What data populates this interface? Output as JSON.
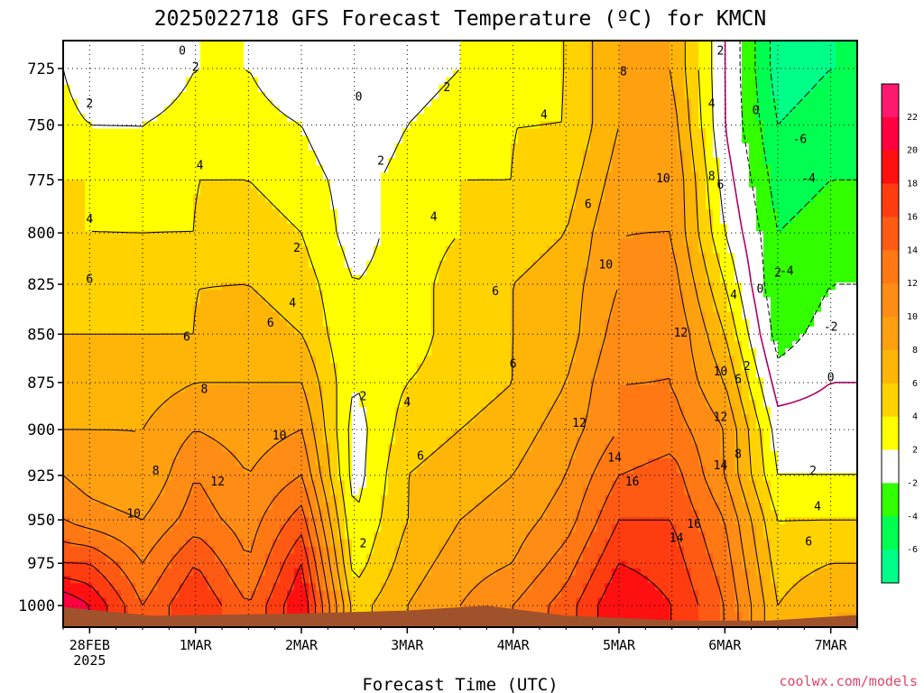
{
  "chart_data": {
    "type": "heatmap",
    "title": "2025022718 GFS Forecast Temperature (ºC) for KMCN",
    "xlabel": "Forecast Time (UTC)",
    "ylabel": "",
    "credit": "coolwx.com/models",
    "y_axis": {
      "unit": "hPa",
      "ticks": [
        725,
        750,
        775,
        800,
        825,
        850,
        875,
        900,
        925,
        950,
        975,
        1000
      ],
      "range": [
        1013,
        713
      ],
      "grid": true
    },
    "x_axis": {
      "ticks": [
        {
          "label": "28FEB",
          "sublabel": "2025",
          "date": "2025-02-28 00Z"
        },
        {
          "label": "1MAR",
          "date": "2025-03-01 00Z"
        },
        {
          "label": "2MAR",
          "date": "2025-03-02 00Z"
        },
        {
          "label": "3MAR",
          "date": "2025-03-03 00Z"
        },
        {
          "label": "4MAR",
          "date": "2025-03-04 00Z"
        },
        {
          "label": "5MAR",
          "date": "2025-03-05 00Z"
        },
        {
          "label": "6MAR",
          "date": "2025-03-06 00Z"
        },
        {
          "label": "7MAR",
          "date": "2025-03-07 00Z"
        }
      ],
      "range": [
        "2025-02-27 18Z",
        "2025-03-07 06Z"
      ],
      "grid": true
    },
    "colorbar": {
      "placement": "right",
      "labels": [
        "22",
        "20",
        "18",
        "16",
        "14",
        "12",
        "10",
        "8",
        "6",
        "4",
        "2",
        "-2",
        "-4",
        "-6"
      ],
      "bands": [
        {
          "min": 22,
          "color": "#ff1a70"
        },
        {
          "min": 20,
          "color": "#ff0040"
        },
        {
          "min": 18,
          "color": "#ff1010"
        },
        {
          "min": 16,
          "color": "#ff3c10"
        },
        {
          "min": 14,
          "color": "#ff5a14"
        },
        {
          "min": 12,
          "color": "#ff7814"
        },
        {
          "min": 10,
          "color": "#ff8c14"
        },
        {
          "min": 8,
          "color": "#ffa010"
        },
        {
          "min": 6,
          "color": "#ffb408"
        },
        {
          "min": 4,
          "color": "#ffd200"
        },
        {
          "min": 2,
          "color": "#ffff00"
        },
        {
          "min": -2,
          "color": "#ffffff"
        },
        {
          "min": -4,
          "color": "#32ff00"
        },
        {
          "min": -6,
          "color": "#00ff50"
        },
        {
          "min": -99,
          "color": "#00ff88"
        }
      ]
    },
    "ground_color": "#a0522d",
    "series": [
      {
        "time": "2025-02-27 18Z",
        "temps": {
          "1000": 22,
          "975": 16,
          "950": 12,
          "925": 10,
          "900": 8,
          "875": 7,
          "850": 6,
          "825": 5,
          "800": 4,
          "775": 4,
          "750": 3,
          "725": 2
        }
      },
      {
        "time": "2025-02-28 00Z",
        "temps": {
          "1000": 20,
          "975": 16,
          "950": 11,
          "925": 9,
          "900": 8,
          "875": 7,
          "850": 6,
          "825": 5,
          "800": 4,
          "775": 4,
          "750": 2,
          "725": 0
        }
      },
      {
        "time": "2025-02-28 12Z",
        "temps": {
          "1000": 14,
          "975": 12,
          "950": 10,
          "925": 8,
          "900": 8,
          "875": 7,
          "850": 6,
          "825": 5,
          "800": 4,
          "775": 3,
          "750": 2,
          "725": 0
        }
      },
      {
        "time": "2025-03-01 00Z",
        "temps": {
          "1000": 18,
          "975": 16,
          "950": 13,
          "925": 12,
          "900": 10,
          "875": 8,
          "850": 6,
          "825": 6,
          "800": 4,
          "775": 4,
          "750": 3,
          "725": 2
        }
      },
      {
        "time": "2025-03-01 12Z",
        "temps": {
          "1000": 14,
          "975": 12,
          "950": 11,
          "925": 10,
          "900": 9,
          "875": 8,
          "850": 7,
          "825": 6,
          "800": 5,
          "775": 4,
          "750": 3,
          "725": 2
        }
      },
      {
        "time": "2025-03-02 00Z",
        "temps": {
          "1000": 20,
          "975": 18,
          "950": 15,
          "925": 12,
          "900": 10,
          "875": 8,
          "850": 6,
          "825": 5,
          "800": 4,
          "775": 3,
          "750": 2,
          "725": 0
        }
      },
      {
        "time": "2025-03-02 12Z",
        "temps": {
          "1000": 5,
          "975": 3,
          "950": 2,
          "925": 1,
          "900": 1,
          "875": 2,
          "850": 2,
          "825": 2,
          "800": 1,
          "775": 1,
          "750": 0,
          "725": 0
        }
      },
      {
        "time": "2025-03-03 00Z",
        "temps": {
          "1000": 8,
          "975": 7,
          "950": 6,
          "925": 6,
          "900": 5,
          "875": 4,
          "850": 3,
          "825": 3,
          "800": 3,
          "775": 3,
          "750": 2,
          "725": 1
        }
      },
      {
        "time": "2025-03-03 12Z",
        "temps": {
          "1000": 10,
          "975": 9,
          "950": 8,
          "925": 7,
          "900": 6,
          "875": 5,
          "850": 5,
          "825": 5,
          "800": 4,
          "775": 4,
          "750": 3,
          "725": 2
        }
      },
      {
        "time": "2025-03-04 00Z",
        "temps": {
          "1000": 12,
          "975": 10,
          "950": 9,
          "925": 8,
          "900": 7,
          "875": 6,
          "850": 6,
          "825": 6,
          "800": 5,
          "775": 4,
          "750": 4,
          "725": 3
        }
      },
      {
        "time": "2025-03-04 12Z",
        "temps": {
          "1000": 15,
          "975": 13,
          "950": 11,
          "925": 10,
          "900": 9,
          "875": 8,
          "850": 7,
          "825": 7,
          "800": 6,
          "775": 5,
          "750": 4,
          "725": 4
        }
      },
      {
        "time": "2025-03-05 00Z",
        "temps": {
          "1000": 20,
          "975": 18,
          "950": 16,
          "925": 14,
          "900": 12,
          "875": 12,
          "850": 11,
          "825": 10,
          "800": 10,
          "775": 9,
          "750": 8,
          "725": 8
        }
      },
      {
        "time": "2025-03-05 12Z",
        "temps": {
          "1000": 18,
          "975": 17,
          "950": 16,
          "925": 15,
          "900": 13,
          "875": 12,
          "850": 12,
          "825": 11,
          "800": 10,
          "775": 10,
          "750": 9,
          "725": 8
        }
      },
      {
        "time": "2025-03-06 00Z",
        "temps": {
          "1000": 14,
          "975": 13,
          "950": 12,
          "925": 10,
          "900": 10,
          "875": 8,
          "850": 6,
          "825": 4,
          "800": 2,
          "775": 1,
          "750": 0,
          "725": 0
        }
      },
      {
        "time": "2025-03-06 12Z",
        "temps": {
          "1000": 6,
          "975": 5,
          "950": 4,
          "925": 2,
          "900": 1,
          "875": -1,
          "850": -3,
          "825": -4,
          "800": -4,
          "775": -5,
          "750": -6,
          "725": -7
        }
      },
      {
        "time": "2025-03-07 00Z",
        "temps": {
          "1000": 8,
          "975": 6,
          "950": 4,
          "925": 2,
          "900": 1,
          "875": 0,
          "850": -1,
          "825": -2,
          "800": -3,
          "775": -4,
          "750": -5,
          "725": -6
        }
      }
    ],
    "contour_labels": [
      {
        "text": "0",
        "time": "2025-02-28 21Z",
        "level": 717
      },
      {
        "text": "2",
        "time": "2025-03-01 00Z",
        "level": 724
      },
      {
        "text": "2",
        "time": "2025-02-28 00Z",
        "level": 740
      },
      {
        "text": "0",
        "time": "2025-03-02 13Z",
        "level": 737
      },
      {
        "text": "2",
        "time": "2025-03-03 09Z",
        "level": 733
      },
      {
        "text": "8",
        "time": "2025-03-05 01Z",
        "level": 726
      },
      {
        "text": "2",
        "time": "2025-03-05 23Z",
        "level": 717
      },
      {
        "text": "4",
        "time": "2025-03-05 21Z",
        "level": 740
      },
      {
        "text": "0",
        "time": "2025-03-06 07Z",
        "level": 743
      },
      {
        "text": "4",
        "time": "2025-03-04 07Z",
        "level": 745
      },
      {
        "text": "4",
        "time": "2025-03-01 01Z",
        "level": 768
      },
      {
        "text": "2",
        "time": "2025-03-02 18Z",
        "level": 766
      },
      {
        "text": "-6",
        "time": "2025-03-06 17Z",
        "level": 756
      },
      {
        "text": "-4",
        "time": "2025-03-06 19Z",
        "level": 774
      },
      {
        "text": "10",
        "time": "2025-03-05 10Z",
        "level": 774
      },
      {
        "text": "8",
        "time": "2025-03-05 21Z",
        "level": 773
      },
      {
        "text": "6",
        "time": "2025-03-05 23Z",
        "level": 777
      },
      {
        "text": "6",
        "time": "2025-03-04 17Z",
        "level": 786
      },
      {
        "text": "4",
        "time": "2025-02-28 00Z",
        "level": 793
      },
      {
        "text": "4",
        "time": "2025-03-03 06Z",
        "level": 792
      },
      {
        "text": "2",
        "time": "2025-03-01 23Z",
        "level": 807
      },
      {
        "text": "10",
        "time": "2025-03-04 21Z",
        "level": 815
      },
      {
        "text": "2",
        "time": "2025-03-06 12Z",
        "level": 819
      },
      {
        "text": "-4",
        "time": "2025-03-06 14Z",
        "level": 818
      },
      {
        "text": "6",
        "time": "2025-02-28 00Z",
        "level": 822
      },
      {
        "text": "0",
        "time": "2025-03-06 08Z",
        "level": 827
      },
      {
        "text": "6",
        "time": "2025-03-03 20Z",
        "level": 828
      },
      {
        "text": "4",
        "time": "2025-03-06 02Z",
        "level": 830
      },
      {
        "text": "4",
        "time": "2025-03-01 22Z",
        "level": 834
      },
      {
        "text": "6",
        "time": "2025-03-01 17Z",
        "level": 844
      },
      {
        "text": "-2",
        "time": "2025-03-07 00Z",
        "level": 846
      },
      {
        "text": "6",
        "time": "2025-02-28 22Z",
        "level": 851
      },
      {
        "text": "12",
        "time": "2025-03-05 14Z",
        "level": 849
      },
      {
        "text": "6",
        "time": "2025-03-04 00Z",
        "level": 865
      },
      {
        "text": "2",
        "time": "2025-03-06 05Z",
        "level": 866
      },
      {
        "text": "10",
        "time": "2025-03-05 23Z",
        "level": 869
      },
      {
        "text": "8",
        "time": "2025-03-01 02Z",
        "level": 878
      },
      {
        "text": "6",
        "time": "2025-03-06 03Z",
        "level": 873
      },
      {
        "text": "0",
        "time": "2025-03-07 00Z",
        "level": 872
      },
      {
        "text": "2",
        "time": "2025-03-02 14Z",
        "level": 882
      },
      {
        "text": "4",
        "time": "2025-03-03 00Z",
        "level": 885
      },
      {
        "text": "12",
        "time": "2025-03-05 23Z",
        "level": 893
      },
      {
        "text": "12",
        "time": "2025-03-04 15Z",
        "level": 896
      },
      {
        "text": "10",
        "time": "2025-03-01 19Z",
        "level": 903
      },
      {
        "text": "8",
        "time": "2025-03-06 03Z",
        "level": 913
      },
      {
        "text": "6",
        "time": "2025-03-03 03Z",
        "level": 914
      },
      {
        "text": "14",
        "time": "2025-03-04 23Z",
        "level": 915
      },
      {
        "text": "14",
        "time": "2025-03-05 23Z",
        "level": 919
      },
      {
        "text": "8",
        "time": "2025-02-28 15Z",
        "level": 922
      },
      {
        "text": "2",
        "time": "2025-03-06 20Z",
        "level": 922
      },
      {
        "text": "12",
        "time": "2025-03-01 05Z",
        "level": 928
      },
      {
        "text": "16",
        "time": "2025-03-05 03Z",
        "level": 928
      },
      {
        "text": "4",
        "time": "2025-03-06 21Z",
        "level": 942
      },
      {
        "text": "10",
        "time": "2025-02-28 10Z",
        "level": 946
      },
      {
        "text": "16",
        "time": "2025-03-05 17Z",
        "level": 952
      },
      {
        "text": "14",
        "time": "2025-03-05 13Z",
        "level": 960
      },
      {
        "text": "6",
        "time": "2025-03-06 19Z",
        "level": 962
      },
      {
        "text": "2",
        "time": "2025-03-02 14Z",
        "level": 963
      }
    ]
  }
}
